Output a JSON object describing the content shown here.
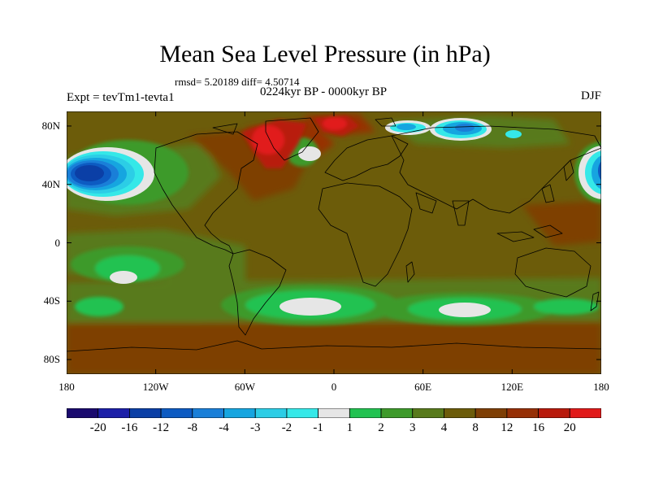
{
  "title": "Mean Sea Level Pressure (in hPa)",
  "stats": "rmsd= 5.20189 diff= 4.50714",
  "period": "0224kyr BP - 0000kyr BP",
  "experiment": "Expt = tevTm1-tevta1",
  "season": "DJF",
  "chart_data": {
    "type": "heatmap",
    "projection": "cylindrical equidistant",
    "variable": "Mean sea level pressure difference (hPa)",
    "lat_range": [
      -90,
      90
    ],
    "lon_range": [
      -180,
      180
    ],
    "lat_ticks": [
      {
        "value": 80,
        "label": "80N"
      },
      {
        "value": 40,
        "label": "40N"
      },
      {
        "value": 0,
        "label": "0"
      },
      {
        "value": -40,
        "label": "40S"
      },
      {
        "value": -80,
        "label": "80S"
      }
    ],
    "lon_ticks": [
      {
        "value": -180,
        "label": "180"
      },
      {
        "value": -120,
        "label": "120W"
      },
      {
        "value": -60,
        "label": "60W"
      },
      {
        "value": 0,
        "label": "0"
      },
      {
        "value": 60,
        "label": "60E"
      },
      {
        "value": 120,
        "label": "120E"
      },
      {
        "value": 180,
        "label": "180"
      }
    ],
    "levels": [
      -20,
      -16,
      -12,
      -8,
      -4,
      -3,
      -2,
      -1,
      1,
      2,
      3,
      4,
      8,
      12,
      16,
      20
    ],
    "level_labels": [
      "-20",
      "-16",
      "-12",
      "-8",
      "-4",
      "-3",
      "-2",
      "-1",
      "1",
      "2",
      "3",
      "4",
      "8",
      "12",
      "16",
      "20"
    ],
    "colors": [
      "#1a0a6e",
      "#1c1fa8",
      "#0b3fa6",
      "#0d5bc2",
      "#1a7fd8",
      "#16a5e0",
      "#2ccde6",
      "#35e8e8",
      "#e6e6e6",
      "#22c251",
      "#3e9a2b",
      "#587a1c",
      "#6c5c0a",
      "#7e3f05",
      "#963006",
      "#b81a0c",
      "#e11a1a"
    ],
    "features": [
      {
        "name": "North Pacific low anomaly",
        "lon": -145,
        "lat": 43,
        "value": -12
      },
      {
        "name": "East Asia / NW Pacific low anomaly",
        "lon": 178,
        "lat": 43,
        "value": -8
      },
      {
        "name": "Greenland high anomaly",
        "lon": -40,
        "lat": 70,
        "value": 16
      },
      {
        "name": "North Atlantic low anomaly",
        "lon": -22,
        "lat": 50,
        "value": -1
      },
      {
        "name": "Barents Sea low anomaly",
        "lon": 40,
        "lat": 80,
        "value": -3
      },
      {
        "name": "Siberian Arctic low anomaly",
        "lon": 85,
        "lat": 78,
        "value": -4
      },
      {
        "name": "South Pacific low anomaly",
        "lon": -140,
        "lat": -23,
        "value": -1
      },
      {
        "name": "South Atlantic low anomaly",
        "lon": -18,
        "lat": -42,
        "value": -1
      },
      {
        "name": "South Indian Ocean low anomaly",
        "lon": 85,
        "lat": -44,
        "value": -1
      },
      {
        "name": "Background (continents / tropics)",
        "lon": 0,
        "lat": 10,
        "value": 6
      }
    ]
  }
}
